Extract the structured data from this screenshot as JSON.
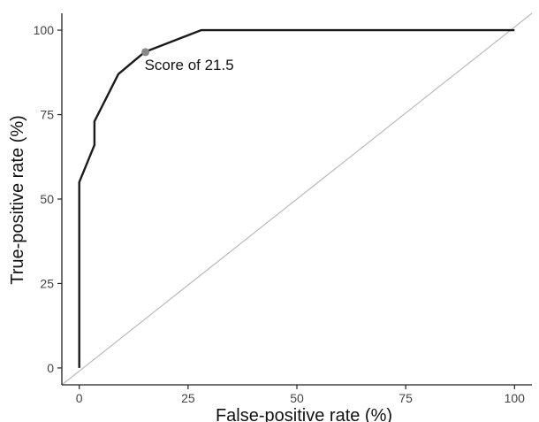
{
  "chart_data": {
    "type": "line",
    "title": "",
    "xlabel": "False-positive rate (%)",
    "ylabel": "True-positive rate (%)",
    "xlim": [
      -4,
      104
    ],
    "ylim": [
      -5,
      105
    ],
    "x_ticks": [
      0,
      25,
      50,
      75,
      100
    ],
    "x_tick_labels": [
      "0",
      "25",
      "50",
      "75",
      "100"
    ],
    "y_ticks": [
      0,
      25,
      50,
      75,
      100
    ],
    "y_tick_labels": [
      "0",
      "25",
      "50",
      "75",
      "100"
    ],
    "grid": false,
    "legend": "none",
    "series": [
      {
        "color": "#1a1a1a",
        "points": [
          [
            0,
            0
          ],
          [
            0,
            55
          ],
          [
            3.5,
            66
          ],
          [
            3.5,
            73
          ],
          [
            9,
            87
          ],
          [
            15,
            93.5
          ],
          [
            28,
            100
          ],
          [
            100,
            100
          ]
        ]
      }
    ],
    "reference_line": {
      "color": "#bbbbbb",
      "points": [
        [
          -4,
          -5
        ],
        [
          104,
          105
        ]
      ]
    },
    "highlight_point": {
      "x": 15.2,
      "y": 93.5,
      "color": "#888888",
      "label": "Score of 21.5"
    }
  }
}
